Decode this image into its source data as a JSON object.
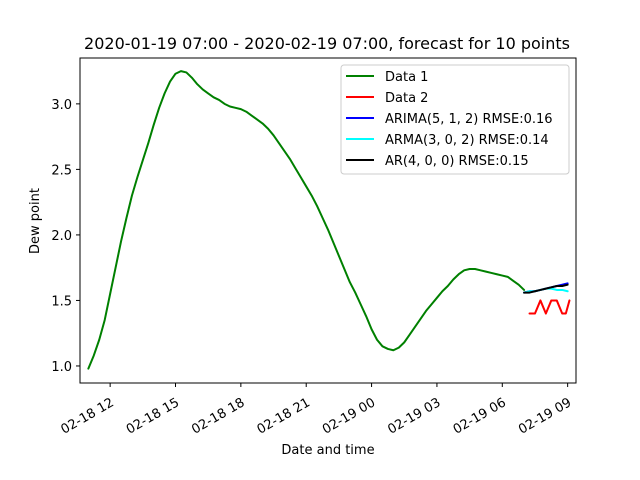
{
  "chart_data": {
    "type": "line",
    "title": "2020-01-19 07:00 - 2020-02-19 07:00, forecast for 10 points",
    "xlabel": "Date and time",
    "ylabel": "Dew point",
    "xlim": [
      "2020-02-18 10:37",
      "2020-02-19 09:23"
    ],
    "ylim": [
      0.87,
      3.35
    ],
    "x_ticks": [
      {
        "value": "2020-02-18 12:00",
        "label": "02-18 12"
      },
      {
        "value": "2020-02-18 15:00",
        "label": "02-18 15"
      },
      {
        "value": "2020-02-18 18:00",
        "label": "02-18 18"
      },
      {
        "value": "2020-02-18 21:00",
        "label": "02-18 21"
      },
      {
        "value": "2020-02-19 00:00",
        "label": "02-19 00"
      },
      {
        "value": "2020-02-19 03:00",
        "label": "02-19 03"
      },
      {
        "value": "2020-02-19 06:00",
        "label": "02-19 06"
      },
      {
        "value": "2020-02-19 09:00",
        "label": "02-19 09"
      }
    ],
    "y_ticks": [
      {
        "value": 1.0,
        "label": "1.0"
      },
      {
        "value": 1.5,
        "label": "1.5"
      },
      {
        "value": 2.0,
        "label": "2.0"
      },
      {
        "value": 2.5,
        "label": "2.5"
      },
      {
        "value": 3.0,
        "label": "3.0"
      }
    ],
    "grid": false,
    "legend_position": "top-right",
    "series": [
      {
        "name": "Data 1",
        "color": "#008000",
        "points": [
          [
            "2020-02-18 11:00",
            0.98
          ],
          [
            "2020-02-18 11:15",
            1.08
          ],
          [
            "2020-02-18 11:30",
            1.2
          ],
          [
            "2020-02-18 11:45",
            1.35
          ],
          [
            "2020-02-18 12:00",
            1.55
          ],
          [
            "2020-02-18 12:15",
            1.75
          ],
          [
            "2020-02-18 12:30",
            1.95
          ],
          [
            "2020-02-18 12:45",
            2.13
          ],
          [
            "2020-02-18 13:00",
            2.3
          ],
          [
            "2020-02-18 13:15",
            2.44
          ],
          [
            "2020-02-18 13:30",
            2.57
          ],
          [
            "2020-02-18 13:45",
            2.7
          ],
          [
            "2020-02-18 14:00",
            2.84
          ],
          [
            "2020-02-18 14:15",
            2.97
          ],
          [
            "2020-02-18 14:30",
            3.08
          ],
          [
            "2020-02-18 14:45",
            3.17
          ],
          [
            "2020-02-18 15:00",
            3.23
          ],
          [
            "2020-02-18 15:15",
            3.25
          ],
          [
            "2020-02-18 15:30",
            3.24
          ],
          [
            "2020-02-18 15:45",
            3.2
          ],
          [
            "2020-02-18 16:00",
            3.15
          ],
          [
            "2020-02-18 16:15",
            3.11
          ],
          [
            "2020-02-18 16:30",
            3.08
          ],
          [
            "2020-02-18 16:45",
            3.05
          ],
          [
            "2020-02-18 17:00",
            3.03
          ],
          [
            "2020-02-18 17:15",
            3.0
          ],
          [
            "2020-02-18 17:30",
            2.98
          ],
          [
            "2020-02-18 17:45",
            2.97
          ],
          [
            "2020-02-18 18:00",
            2.96
          ],
          [
            "2020-02-18 18:15",
            2.94
          ],
          [
            "2020-02-18 18:30",
            2.91
          ],
          [
            "2020-02-18 18:45",
            2.88
          ],
          [
            "2020-02-18 19:00",
            2.85
          ],
          [
            "2020-02-18 19:15",
            2.81
          ],
          [
            "2020-02-18 19:30",
            2.76
          ],
          [
            "2020-02-18 19:45",
            2.7
          ],
          [
            "2020-02-18 20:00",
            2.64
          ],
          [
            "2020-02-18 20:15",
            2.58
          ],
          [
            "2020-02-18 20:30",
            2.51
          ],
          [
            "2020-02-18 20:45",
            2.44
          ],
          [
            "2020-02-18 21:00",
            2.37
          ],
          [
            "2020-02-18 21:15",
            2.3
          ],
          [
            "2020-02-18 21:30",
            2.22
          ],
          [
            "2020-02-18 21:45",
            2.13
          ],
          [
            "2020-02-18 22:00",
            2.04
          ],
          [
            "2020-02-18 22:15",
            1.94
          ],
          [
            "2020-02-18 22:30",
            1.84
          ],
          [
            "2020-02-18 22:45",
            1.74
          ],
          [
            "2020-02-18 23:00",
            1.64
          ],
          [
            "2020-02-18 23:15",
            1.56
          ],
          [
            "2020-02-18 23:30",
            1.47
          ],
          [
            "2020-02-18 23:45",
            1.38
          ],
          [
            "2020-02-19 00:00",
            1.28
          ],
          [
            "2020-02-19 00:15",
            1.2
          ],
          [
            "2020-02-19 00:30",
            1.15
          ],
          [
            "2020-02-19 00:45",
            1.13
          ],
          [
            "2020-02-19 01:00",
            1.12
          ],
          [
            "2020-02-19 01:15",
            1.14
          ],
          [
            "2020-02-19 01:30",
            1.18
          ],
          [
            "2020-02-19 01:45",
            1.24
          ],
          [
            "2020-02-19 02:00",
            1.3
          ],
          [
            "2020-02-19 02:15",
            1.36
          ],
          [
            "2020-02-19 02:30",
            1.42
          ],
          [
            "2020-02-19 02:45",
            1.47
          ],
          [
            "2020-02-19 03:00",
            1.52
          ],
          [
            "2020-02-19 03:15",
            1.57
          ],
          [
            "2020-02-19 03:30",
            1.61
          ],
          [
            "2020-02-19 03:45",
            1.66
          ],
          [
            "2020-02-19 04:00",
            1.7
          ],
          [
            "2020-02-19 04:15",
            1.73
          ],
          [
            "2020-02-19 04:30",
            1.74
          ],
          [
            "2020-02-19 04:45",
            1.74
          ],
          [
            "2020-02-19 05:00",
            1.73
          ],
          [
            "2020-02-19 05:15",
            1.72
          ],
          [
            "2020-02-19 05:30",
            1.71
          ],
          [
            "2020-02-19 05:45",
            1.7
          ],
          [
            "2020-02-19 06:00",
            1.69
          ],
          [
            "2020-02-19 06:15",
            1.68
          ],
          [
            "2020-02-19 06:30",
            1.65
          ],
          [
            "2020-02-19 06:45",
            1.62
          ],
          [
            "2020-02-19 07:00",
            1.58
          ]
        ]
      },
      {
        "name": "Data 2",
        "color": "#ff0000",
        "points": [
          [
            "2020-02-19 07:15",
            1.4
          ],
          [
            "2020-02-19 07:30",
            1.4
          ],
          [
            "2020-02-19 07:45",
            1.5
          ],
          [
            "2020-02-19 08:00",
            1.4
          ],
          [
            "2020-02-19 08:15",
            1.5
          ],
          [
            "2020-02-19 08:30",
            1.5
          ],
          [
            "2020-02-19 08:45",
            1.4
          ],
          [
            "2020-02-19 08:55",
            1.4
          ],
          [
            "2020-02-19 09:05",
            1.5
          ]
        ]
      },
      {
        "name": "ARIMA(5, 1, 2) RMSE:0.16",
        "color": "#0000ff",
        "points": [
          [
            "2020-02-19 07:00",
            1.56
          ],
          [
            "2020-02-19 07:15",
            1.57
          ],
          [
            "2020-02-19 07:30",
            1.57
          ],
          [
            "2020-02-19 07:45",
            1.58
          ],
          [
            "2020-02-19 08:00",
            1.59
          ],
          [
            "2020-02-19 08:15",
            1.6
          ],
          [
            "2020-02-19 08:30",
            1.61
          ],
          [
            "2020-02-19 08:45",
            1.62
          ],
          [
            "2020-02-19 09:00",
            1.63
          ]
        ]
      },
      {
        "name": "ARMA(3, 0, 2) RMSE:0.14",
        "color": "#00ffff",
        "points": [
          [
            "2020-02-19 07:00",
            1.56
          ],
          [
            "2020-02-19 07:15",
            1.57
          ],
          [
            "2020-02-19 07:30",
            1.57
          ],
          [
            "2020-02-19 07:45",
            1.58
          ],
          [
            "2020-02-19 08:00",
            1.59
          ],
          [
            "2020-02-19 08:15",
            1.59
          ],
          [
            "2020-02-19 08:30",
            1.58
          ],
          [
            "2020-02-19 08:45",
            1.58
          ],
          [
            "2020-02-19 09:00",
            1.57
          ]
        ]
      },
      {
        "name": "AR(4, 0, 0) RMSE:0.15",
        "color": "#000000",
        "points": [
          [
            "2020-02-19 07:00",
            1.56
          ],
          [
            "2020-02-19 07:15",
            1.56
          ],
          [
            "2020-02-19 07:30",
            1.57
          ],
          [
            "2020-02-19 07:45",
            1.58
          ],
          [
            "2020-02-19 08:00",
            1.59
          ],
          [
            "2020-02-19 08:15",
            1.6
          ],
          [
            "2020-02-19 08:30",
            1.61
          ],
          [
            "2020-02-19 08:45",
            1.61
          ],
          [
            "2020-02-19 09:00",
            1.62
          ]
        ]
      }
    ]
  }
}
